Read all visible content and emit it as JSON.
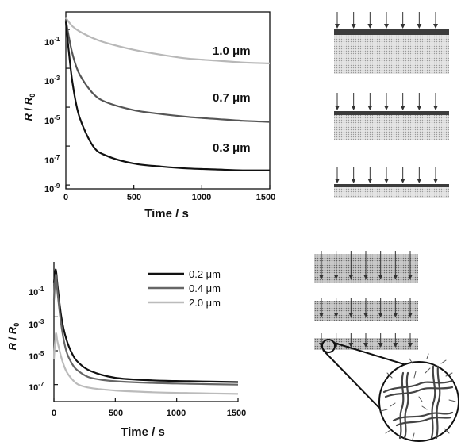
{
  "chart_data": [
    {
      "type": "line",
      "xlabel": "Time / s",
      "ylabel": "R / R0",
      "yscale": "log",
      "xlim": [
        0,
        1500
      ],
      "ylim_exp": [
        -9,
        0
      ],
      "x_ticks": [
        "0",
        "500",
        "1000",
        "1500"
      ],
      "y_ticks": [
        "10-1",
        "10-3",
        "10-5",
        "10-7",
        "10-9"
      ],
      "series": [
        {
          "name": "1.0 μm",
          "color": "#b8b8b8",
          "x": [
            0,
            20,
            50,
            100,
            200,
            300,
            500,
            700,
            900,
            1100,
            1300,
            1500
          ],
          "log10_y": [
            -0.4,
            -0.6,
            -0.85,
            -1.1,
            -1.45,
            -1.7,
            -2.05,
            -2.3,
            -2.5,
            -2.6,
            -2.7,
            -2.75
          ]
        },
        {
          "name": "0.7 μm",
          "color": "#555555",
          "x": [
            0,
            20,
            50,
            100,
            200,
            300,
            500,
            700,
            900,
            1100,
            1300,
            1500
          ],
          "log10_y": [
            -0.5,
            -1.3,
            -2.3,
            -3.3,
            -4.3,
            -4.75,
            -5.15,
            -5.35,
            -5.5,
            -5.6,
            -5.7,
            -5.75
          ]
        },
        {
          "name": "0.3 μm",
          "color": "#111111",
          "x": [
            0,
            20,
            50,
            100,
            200,
            300,
            500,
            700,
            900,
            1100,
            1300,
            1500
          ],
          "log10_y": [
            -0.6,
            -2.0,
            -3.8,
            -5.5,
            -7.0,
            -7.5,
            -7.9,
            -8.05,
            -8.15,
            -8.2,
            -8.25,
            -8.25
          ]
        }
      ]
    },
    {
      "type": "line",
      "xlabel": "Time / s",
      "ylabel": "R / R0",
      "yscale": "log",
      "xlim": [
        0,
        1500
      ],
      "ylim_exp": [
        -8,
        0
      ],
      "x_ticks": [
        "0",
        "500",
        "1000",
        "1500"
      ],
      "y_ticks": [
        "10-1",
        "10-3",
        "10-5",
        "10-7"
      ],
      "legend_position": "top-right",
      "series": [
        {
          "name": "0.2 μm",
          "color": "#111111",
          "x": [
            0,
            15,
            30,
            60,
            100,
            150,
            200,
            300,
            500,
            800,
            1100,
            1500
          ],
          "log10_y": [
            -1.0,
            -0.2,
            -1.2,
            -3.0,
            -4.3,
            -5.2,
            -5.7,
            -6.2,
            -6.6,
            -6.75,
            -6.8,
            -6.85
          ]
        },
        {
          "name": "0.4 μm",
          "color": "#666666",
          "x": [
            0,
            15,
            30,
            60,
            100,
            150,
            200,
            300,
            500,
            800,
            1100,
            1500
          ],
          "log10_y": [
            -2.0,
            -0.5,
            -1.6,
            -3.5,
            -5.0,
            -5.8,
            -6.2,
            -6.6,
            -6.8,
            -6.9,
            -6.95,
            -7.0
          ]
        },
        {
          "name": "2.0 μm",
          "color": "#bbbbbb",
          "x": [
            0,
            15,
            30,
            60,
            100,
            150,
            200,
            300,
            500,
            800,
            1100,
            1500
          ],
          "log10_y": [
            -5.5,
            -4.0,
            -4.5,
            -5.4,
            -6.2,
            -6.7,
            -7.0,
            -7.2,
            -7.35,
            -7.45,
            -7.5,
            -7.55
          ]
        }
      ]
    }
  ]
}
